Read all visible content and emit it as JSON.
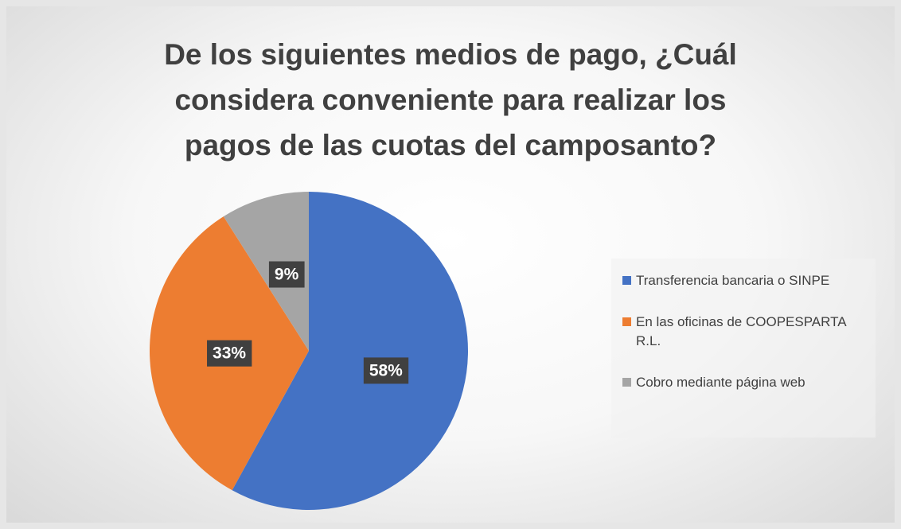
{
  "chart_data": {
    "type": "pie",
    "title": "De los siguientes medios de pago, ¿Cuál considera conveniente para realizar los pagos de las cuotas del camposanto?",
    "categories": [
      "Transferencia bancaria o SINPE",
      "En las oficinas de COOPESPARTA R.L.",
      "Cobro mediante página web"
    ],
    "values": [
      58,
      33,
      9
    ],
    "value_labels": [
      "58%",
      "33%",
      "9%"
    ],
    "colors": [
      "#4472c4",
      "#ed7d31",
      "#a5a5a5"
    ],
    "legend": "right"
  }
}
